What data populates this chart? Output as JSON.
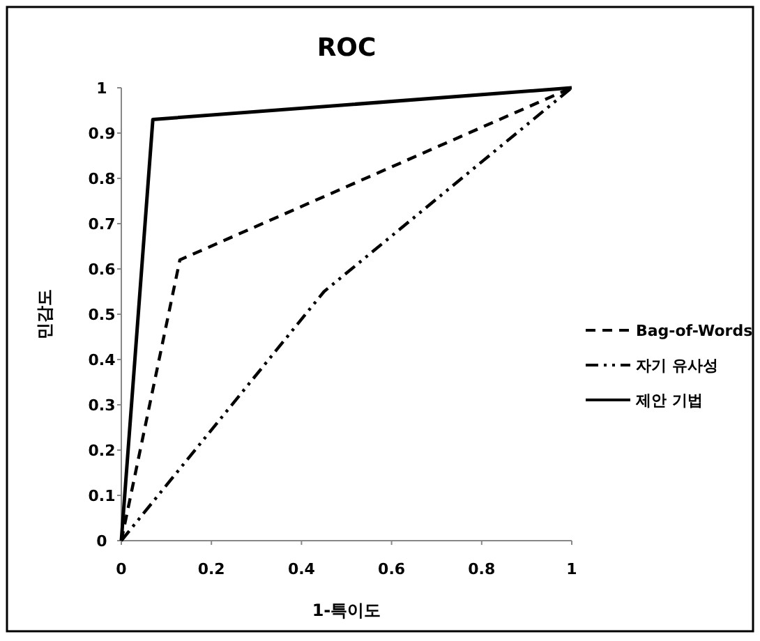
{
  "chart_data": {
    "type": "line",
    "title": "ROC",
    "xlabel": "1-특이도",
    "ylabel": "민감도",
    "xlim": [
      0,
      1
    ],
    "ylim": [
      0,
      1
    ],
    "xticks": [
      0,
      0.2,
      0.4,
      0.6,
      0.8,
      1
    ],
    "yticks": [
      0,
      0.1,
      0.2,
      0.3,
      0.4,
      0.5,
      0.6,
      0.7,
      0.8,
      0.9,
      1
    ],
    "grid": false,
    "legend": "right",
    "marker": "none",
    "series": [
      {
        "name": "Bag-of-Words",
        "color": "#000000",
        "line_style": "dashed",
        "x": [
          0,
          0.13,
          1
        ],
        "values": [
          0,
          0.62,
          1
        ]
      },
      {
        "name": "자기 유사성",
        "color": "#000000",
        "line_style": "dashdot",
        "x": [
          0,
          0.45,
          1
        ],
        "values": [
          0,
          0.55,
          1
        ]
      },
      {
        "name": "제안 기법",
        "color": "#000000",
        "line_style": "solid",
        "x": [
          0,
          0.07,
          1
        ],
        "values": [
          0,
          0.93,
          1
        ]
      }
    ]
  }
}
